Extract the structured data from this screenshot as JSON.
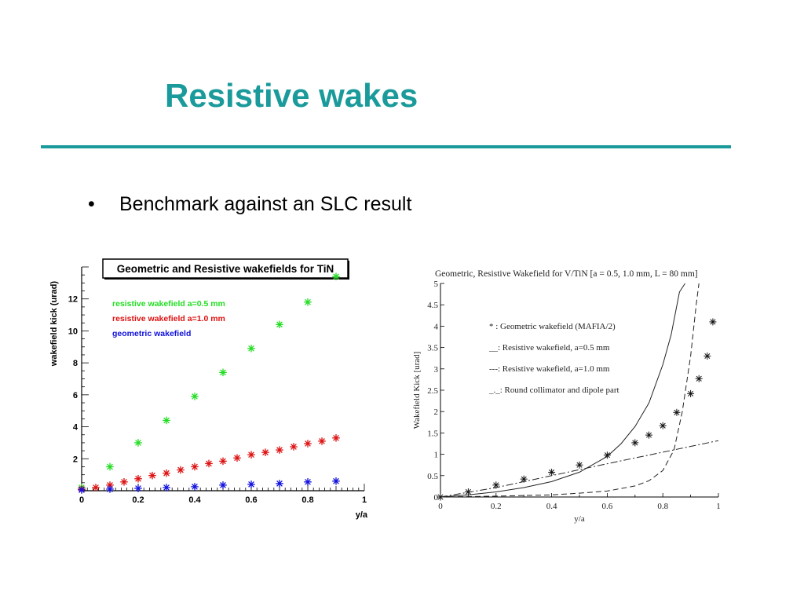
{
  "slide": {
    "title": "Resistive wakes",
    "bullet": "Benchmark against an SLC result",
    "accent_color": "#1a9a9a"
  },
  "chart_data": [
    {
      "type": "scatter",
      "title": "Geometric and Resistive wakefields for TiN",
      "xlabel": "y/a",
      "ylabel": "wakefield kick (urad)",
      "xlim": [
        0,
        1
      ],
      "ylim": [
        0,
        14
      ],
      "x_ticks": [
        "0",
        "0.2",
        "0.4",
        "0.6",
        "0.8",
        "1"
      ],
      "y_ticks": [
        "2",
        "4",
        "6",
        "8",
        "10",
        "12"
      ],
      "grid": false,
      "legend_position": "top-left",
      "marker": "asterisk",
      "series": [
        {
          "name": "resistive wakefield a=0.5 mm",
          "color": "#22dd22",
          "x": [
            0.0,
            0.1,
            0.2,
            0.3,
            0.4,
            0.5,
            0.6,
            0.7,
            0.8,
            0.9
          ],
          "y": [
            0.2,
            1.5,
            3.0,
            4.4,
            5.9,
            7.4,
            8.9,
            10.4,
            11.8,
            13.4
          ]
        },
        {
          "name": "resistive wakefield a=1.0 mm",
          "color": "#dd1111",
          "x": [
            0.0,
            0.05,
            0.1,
            0.15,
            0.2,
            0.25,
            0.3,
            0.35,
            0.4,
            0.45,
            0.5,
            0.55,
            0.6,
            0.65,
            0.7,
            0.75,
            0.8,
            0.85,
            0.9
          ],
          "y": [
            0.1,
            0.2,
            0.35,
            0.55,
            0.75,
            0.95,
            1.1,
            1.3,
            1.5,
            1.7,
            1.85,
            2.05,
            2.25,
            2.4,
            2.55,
            2.75,
            2.95,
            3.1,
            3.3
          ]
        },
        {
          "name": "geometric wakefield",
          "color": "#1111dd",
          "x": [
            0.0,
            0.1,
            0.2,
            0.3,
            0.4,
            0.5,
            0.6,
            0.7,
            0.8,
            0.9
          ],
          "y": [
            0.05,
            0.1,
            0.15,
            0.2,
            0.25,
            0.35,
            0.4,
            0.45,
            0.55,
            0.6
          ]
        }
      ]
    },
    {
      "type": "line",
      "title": "Geometric, Resistive Wakefield for V/TiN [a = 0.5, 1.0 mm, L = 80 mm]",
      "xlabel": "y/a",
      "ylabel": "Wakefield Kick [urad]",
      "xlim": [
        0,
        1
      ],
      "ylim": [
        0,
        5
      ],
      "x_ticks": [
        "0",
        "0.2",
        "0.4",
        "0.6",
        "0.8",
        "1"
      ],
      "y_ticks": [
        "0",
        "0.5",
        "1",
        "1.5",
        "2",
        "2.5",
        "3",
        "3.5",
        "4",
        "4.5",
        "5"
      ],
      "grid": false,
      "legend_position": "top-center",
      "series": [
        {
          "name": "* : Geometric wakefield (MAFIA/2)",
          "style": "markers",
          "x": [
            0.0,
            0.1,
            0.2,
            0.3,
            0.4,
            0.5,
            0.6,
            0.7,
            0.75,
            0.8,
            0.85,
            0.9,
            0.93,
            0.96,
            0.98
          ],
          "y": [
            0.0,
            0.12,
            0.28,
            0.42,
            0.58,
            0.75,
            0.98,
            1.27,
            1.45,
            1.67,
            1.98,
            2.42,
            2.77,
            3.3,
            4.1
          ]
        },
        {
          "name": "__: Resistive wakefield, a=0.5 mm",
          "style": "solid",
          "x": [
            0.0,
            0.1,
            0.2,
            0.3,
            0.4,
            0.5,
            0.6,
            0.65,
            0.7,
            0.75,
            0.8,
            0.83,
            0.86,
            0.88
          ],
          "y": [
            0.0,
            0.05,
            0.12,
            0.22,
            0.36,
            0.58,
            0.95,
            1.25,
            1.65,
            2.2,
            3.1,
            3.8,
            4.8,
            5.0
          ]
        },
        {
          "name": "---: Resistive wakefield, a=1.0 mm",
          "style": "dashed",
          "x": [
            0.0,
            0.2,
            0.4,
            0.5,
            0.6,
            0.7,
            0.75,
            0.8,
            0.84,
            0.87,
            0.9,
            0.92,
            0.93
          ],
          "y": [
            0.0,
            0.02,
            0.05,
            0.09,
            0.14,
            0.26,
            0.38,
            0.62,
            1.1,
            2.0,
            3.3,
            4.5,
            5.0
          ]
        },
        {
          "name": "_._: Round collimator and dipole part",
          "style": "dashdot",
          "x": [
            0.0,
            0.2,
            0.4,
            0.6,
            0.8,
            1.0
          ],
          "y": [
            0.0,
            0.22,
            0.5,
            0.78,
            1.05,
            1.32
          ]
        }
      ]
    }
  ]
}
